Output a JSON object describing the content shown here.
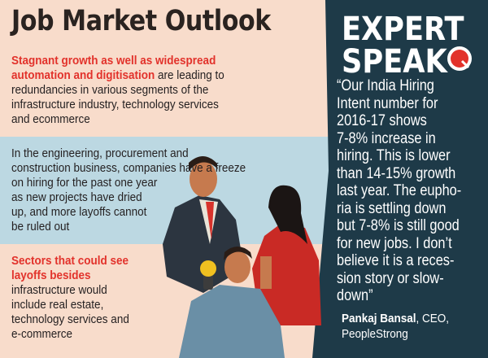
{
  "left": {
    "title": "Job Market Outlook",
    "intro": {
      "highlight": [
        "Stagnant growth as well as widespread",
        "automation and digitisation"
      ],
      "lines": [
        "are leading to",
        "redundancies in various segments of the",
        "infrastructure industry, technology services",
        "and ecommerce"
      ]
    },
    "freeze": [
      "In the engineering, procurement and",
      "construction business, companies have a freeze",
      "on hiring for the past one year",
      "as new projects have dried",
      "up, and more layoffs cannot",
      "be ruled out"
    ],
    "sectors": {
      "heading": [
        "Sectors that could see",
        "layoffs besides"
      ],
      "body": [
        "infrastructure would",
        "include real estate,",
        "technology services and",
        "e-commerce"
      ]
    }
  },
  "right": {
    "heading": [
      "EXPERT",
      "SPEAK"
    ],
    "quote": [
      "“Our India Hiring",
      "Intent number for",
      "2016-17 shows",
      "7-8% increase in",
      "hiring. This is lower",
      "than 14-15% growth",
      "last year. The eupho-",
      "ria is settling down",
      "but 7-8% is still good",
      "for new jobs. I don’t",
      "believe it is a reces-",
      "sion story or slow-",
      "down”"
    ],
    "attribution": {
      "name": "Pankaj Bansal",
      "role": ", CEO,",
      "company": "PeopleStrong"
    }
  }
}
